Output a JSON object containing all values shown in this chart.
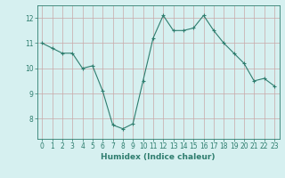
{
  "x": [
    0,
    1,
    2,
    3,
    4,
    5,
    6,
    7,
    8,
    9,
    10,
    11,
    12,
    13,
    14,
    15,
    16,
    17,
    18,
    19,
    20,
    21,
    22,
    23
  ],
  "y": [
    11.0,
    10.8,
    10.6,
    10.6,
    10.0,
    10.1,
    9.1,
    7.75,
    7.6,
    7.8,
    9.5,
    11.2,
    12.1,
    11.5,
    11.5,
    11.6,
    12.1,
    11.5,
    11.0,
    10.6,
    10.2,
    9.5,
    9.6,
    9.3
  ],
  "line_color": "#2e7d6e",
  "marker": "+",
  "marker_size": 3,
  "marker_lw": 0.8,
  "bg_color": "#d6f0f0",
  "grid_color": "#c8a8a8",
  "xlabel": "Humidex (Indice chaleur)",
  "ylim": [
    7.2,
    12.5
  ],
  "xlim": [
    -0.5,
    23.5
  ],
  "yticks": [
    8,
    9,
    10,
    11,
    12
  ],
  "xticks": [
    0,
    1,
    2,
    3,
    4,
    5,
    6,
    7,
    8,
    9,
    10,
    11,
    12,
    13,
    14,
    15,
    16,
    17,
    18,
    19,
    20,
    21,
    22,
    23
  ],
  "tick_color": "#2e7d6e",
  "label_fontsize": 6.5,
  "tick_fontsize": 5.5,
  "line_width": 0.8
}
